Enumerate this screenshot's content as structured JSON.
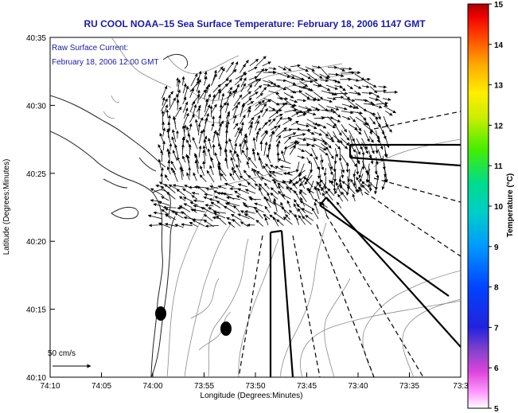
{
  "title": "RU COOL  NOAA–15  Sea Surface Temperature:  February 18, 2006 1147 GMT",
  "current_label_line1": "Raw Surface Current:",
  "current_label_line2": "February 18, 2006 12:00 GMT",
  "scale_label": "50 cm/s",
  "x_axis_label": "Longitude (Degrees:Minutes)",
  "y_axis_label": "Latitude (Degrees:Minutes)",
  "x_ticks": [
    "74:10",
    "74:05",
    "74:00",
    "73:55",
    "73:50",
    "73:45",
    "73:40",
    "73:35",
    "73:3"
  ],
  "y_ticks": [
    "40:35",
    "40:30",
    "40:25",
    "40:20",
    "40:15",
    "40:10"
  ],
  "colorbar": {
    "label": "Temperature (°C)",
    "ticks": [
      "15",
      "14",
      "13",
      "12",
      "11",
      "10",
      "9",
      "8",
      "7",
      "6",
      "5"
    ],
    "min": 5,
    "max": 15
  },
  "colors": {
    "title_text": "#1a1aa8",
    "coastline": "#222222",
    "bathymetry": "#8a8a8a",
    "vectors": "#000000",
    "buoys": "#000000"
  }
}
